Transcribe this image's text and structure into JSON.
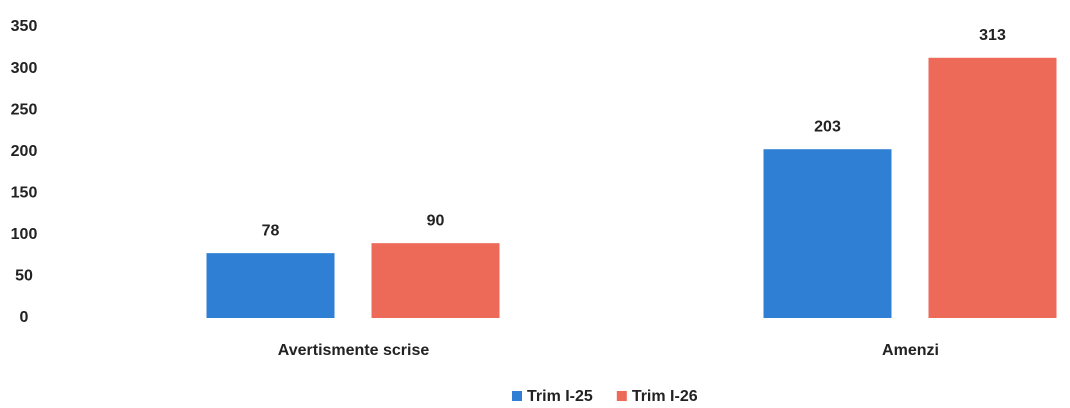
{
  "chart_data": {
    "type": "bar",
    "categories": [
      "Avertismente scrise",
      "Amenzi"
    ],
    "series": [
      {
        "name": "Trim I-25",
        "color": "#2f7fd4",
        "values": [
          78,
          203
        ]
      },
      {
        "name": "Trim I-26",
        "color": "#ee6a58",
        "values": [
          90,
          313
        ]
      }
    ],
    "ylim": [
      0,
      350
    ],
    "yticks": [
      0,
      50,
      100,
      150,
      200,
      250,
      300,
      350
    ],
    "grid": false,
    "legend": "bottom"
  }
}
